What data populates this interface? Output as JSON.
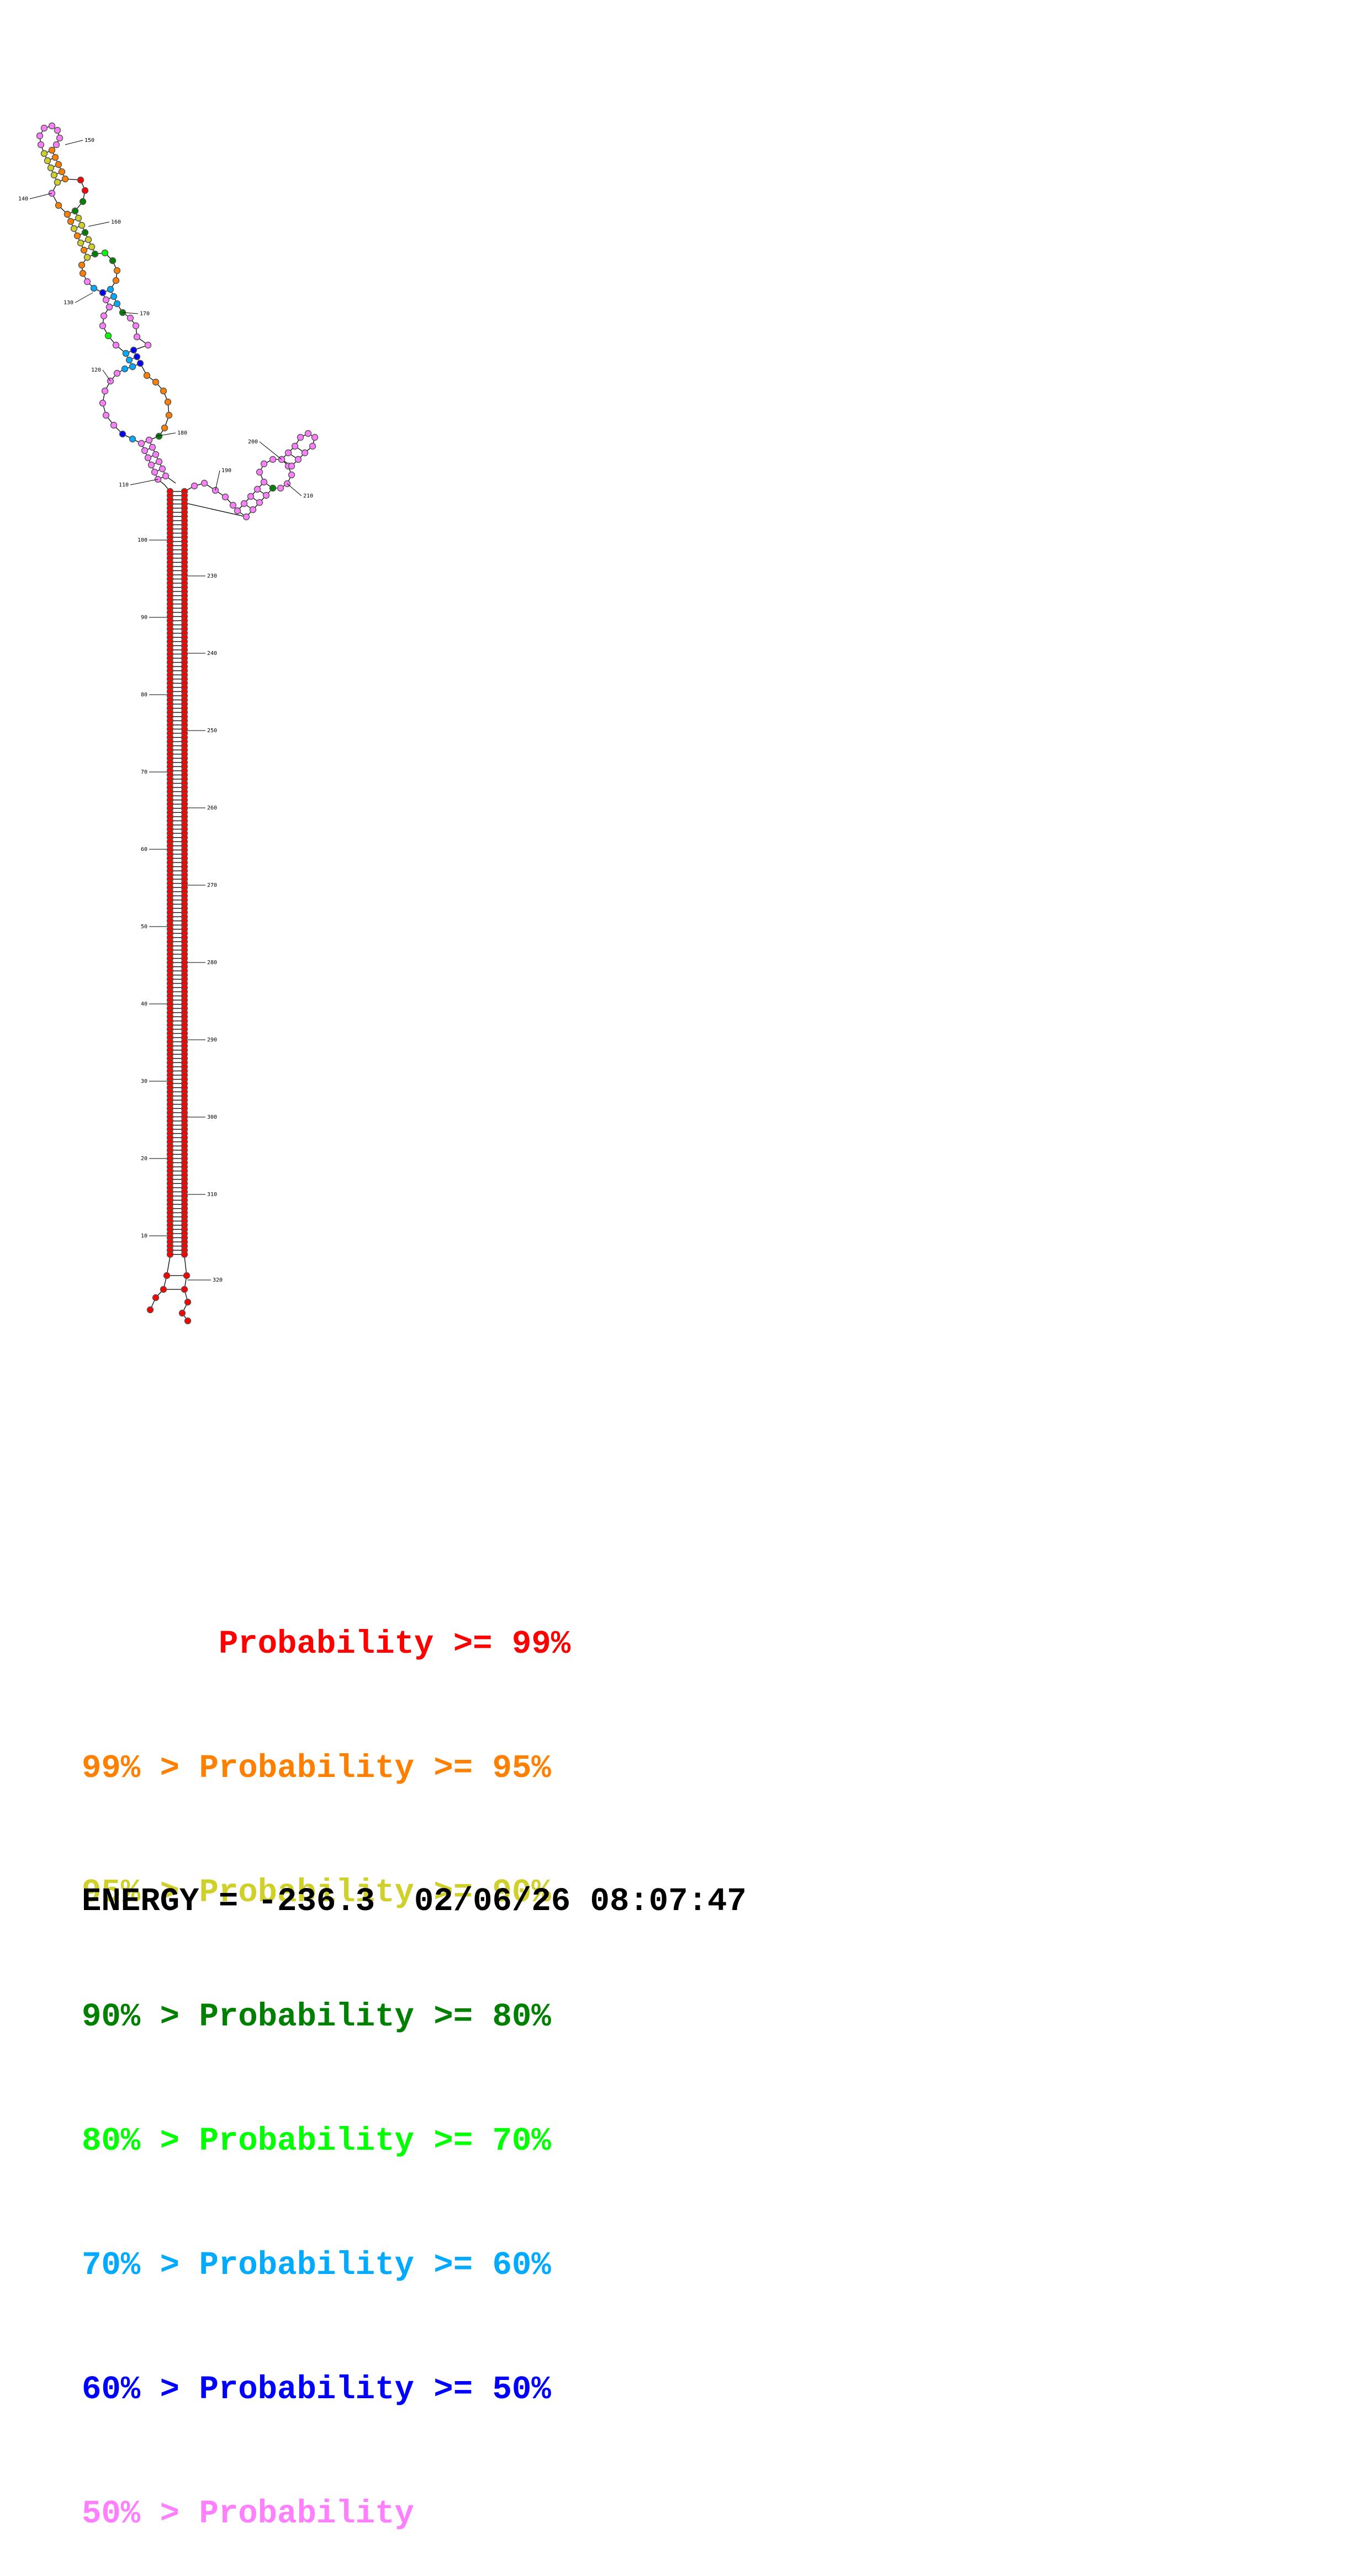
{
  "colors": {
    "p99": "#ff0000",
    "p95": "#ff8000",
    "p90": "#d0d02a",
    "p80": "#008000",
    "p70": "#00ff00",
    "p60": "#00aaff",
    "p50": "#0000ff",
    "plow": "#ff80ff"
  },
  "structure": {
    "position_labels": [
      "10",
      "20",
      "30",
      "40",
      "50",
      "60",
      "70",
      "80",
      "90",
      "100",
      "110",
      "120",
      "130",
      "140",
      "150",
      "160",
      "170",
      "180",
      "190",
      "200",
      "210",
      "230",
      "240",
      "250",
      "260",
      "270",
      "280",
      "290",
      "300",
      "310",
      "320"
    ]
  },
  "legend": {
    "rows": [
      {
        "prefix": "       ",
        "text": "Probability >= 99%",
        "color_key": "p99"
      },
      {
        "prefix": "99% > ",
        "text": "Probability >= 95%",
        "color_key": "p95"
      },
      {
        "prefix": "95% > ",
        "text": "Probability >= 90%",
        "color_key": "p90"
      },
      {
        "prefix": "90% > ",
        "text": "Probability >= 80%",
        "color_key": "p80"
      },
      {
        "prefix": "80% > ",
        "text": "Probability >= 70%",
        "color_key": "p70"
      },
      {
        "prefix": "70% > ",
        "text": "Probability >= 60%",
        "color_key": "p60"
      },
      {
        "prefix": "60% > ",
        "text": "Probability >= 50%",
        "color_key": "p50"
      },
      {
        "prefix": "50% > ",
        "text": "Probability",
        "color_key": "plow"
      }
    ]
  },
  "energy": {
    "label": "ENERGY =",
    "value": "-236.3",
    "timestamp": "02/06/26 08:07:47"
  }
}
